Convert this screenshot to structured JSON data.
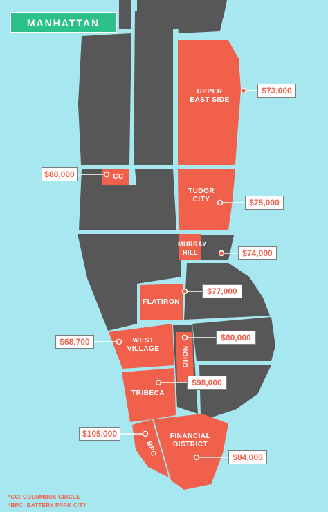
{
  "map": {
    "title": "MANHATTAN",
    "colors": {
      "water": "#a7e8f0",
      "land": "#575757",
      "highlight": "#f0604b",
      "badge": "#2cc08a"
    },
    "neighborhoods": {
      "upper_east_side": {
        "label": "UPPER\nEAST SIDE",
        "price": "$73,000"
      },
      "cc": {
        "label": "CC",
        "price": "$88,000"
      },
      "tudor_city": {
        "label": "TUDOR\nCITY",
        "price": "$75,000"
      },
      "murray_hill": {
        "label": "MURRAY\nHILL",
        "price": "$74,000"
      },
      "flatiron": {
        "label": "FLATIRON",
        "price": "$77,000"
      },
      "west_village": {
        "label": "WEST\nVILLAGE",
        "price": "$68,700"
      },
      "noho": {
        "label": "NOHO",
        "price": "$80,000"
      },
      "tribeca": {
        "label": "TRIBECA",
        "price": "$98,000"
      },
      "bpc": {
        "label": "BPC",
        "price": "$105,000"
      },
      "financial_district": {
        "label": "FINANCIAL\nDISTRICT",
        "price": "$84,000"
      }
    },
    "footnotes": [
      "*CC: COLUMBUS CIRCLE",
      "*BPC: BATTERY PARK CITY"
    ]
  }
}
